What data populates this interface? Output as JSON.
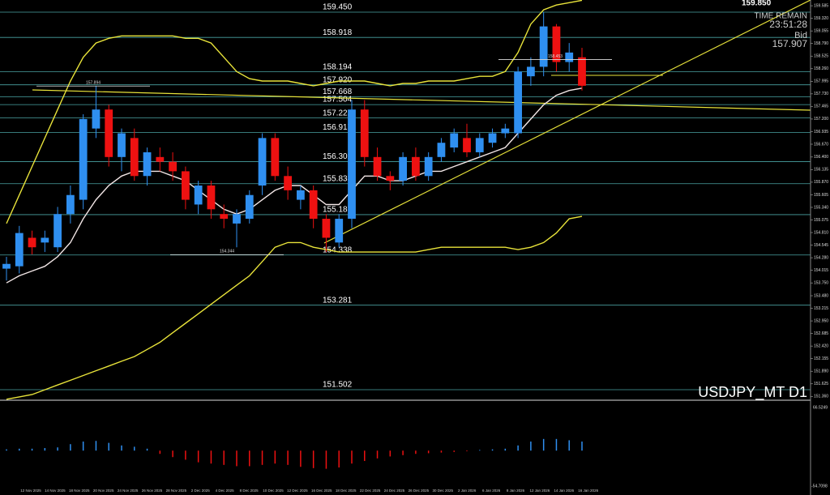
{
  "chart_data": {
    "type": "candlestick",
    "symbol": "USDJPY_MT D1",
    "time_remain_label": "TIME REMAIN",
    "time_remain": "23:51:28",
    "bid_label": "Bid",
    "bid": "157.907",
    "top_price": "159.850",
    "annotations": [
      {
        "value": 158.453,
        "label": "158.453"
      },
      {
        "value": 157.894,
        "label": "157.894"
      },
      {
        "value": 154.344,
        "label": "154.344"
      }
    ],
    "ylim": [
      151.297,
      159.706
    ],
    "yticks": [
      159.585,
      {
        "value": 159.32,
        "label": "159.320"
      },
      159.055,
      {
        "value": 158.79,
        "label": "158.790"
      },
      158.525,
      {
        "value": 158.26,
        "label": "158.260"
      },
      157.995,
      {
        "value": 157.73,
        "label": "157.730"
      },
      157.465,
      {
        "value": 157.2,
        "label": "157.200"
      },
      156.935,
      {
        "value": 156.67,
        "label": "156.670"
      },
      {
        "value": 156.4,
        "label": "156.400"
      },
      156.135,
      {
        "value": 155.87,
        "label": "155.870"
      },
      155.605,
      {
        "value": 155.34,
        "label": "155.340"
      },
      155.075,
      {
        "value": 154.81,
        "label": "154.810"
      },
      154.545,
      {
        "value": 154.28,
        "label": "154.280"
      },
      154.015,
      {
        "value": 153.75,
        "label": "153.750"
      },
      {
        "value": 153.48,
        "label": "153.480"
      },
      153.215,
      {
        "value": 152.95,
        "label": "152.950"
      },
      152.685,
      {
        "value": 152.42,
        "label": "152.420"
      },
      152.155,
      {
        "value": 151.89,
        "label": "151.890"
      },
      151.625,
      {
        "value": 151.36,
        "label": "151.360"
      }
    ],
    "levels": [
      {
        "value": 159.45,
        "label": "159.450"
      },
      158.918,
      158.194,
      {
        "value": 157.92,
        "label": "157.920"
      },
      157.668,
      157.504,
      157.222,
      156.917,
      156.302,
      155.838,
      155.187,
      154.338,
      153.281,
      151.502
    ],
    "x_labels": [
      "12 Nov 2025",
      "14 Nov 2025",
      "18 Nov 2025",
      "20 Nov 2025",
      "24 Nov 2025",
      "26 Nov 2025",
      "28 Nov 2025",
      "2 Dec 2025",
      "4 Dec 2025",
      "8 Dec 2025",
      "10 Dec 2025",
      "12 Dec 2025",
      "16 Dec 2025",
      "18 Dec 2025",
      "22 Dec 2025",
      "24 Dec 2025",
      "26 Dec 2025",
      "30 Dec 2025",
      "2 Jan 2026",
      "6 Jan 2026",
      "8 Jan 2026",
      "12 Jan 2026",
      "14 Jan 2026",
      "16 Jan 2026"
    ],
    "candles": [
      [
        154.05,
        154.3,
        153.8,
        154.15
      ],
      [
        154.1,
        154.95,
        153.95,
        154.8
      ],
      [
        154.7,
        154.85,
        154.35,
        154.5
      ],
      [
        154.6,
        154.85,
        154.4,
        154.7
      ],
      [
        154.5,
        155.35,
        154.4,
        155.2
      ],
      [
        155.2,
        155.8,
        155.0,
        155.6
      ],
      [
        155.5,
        157.3,
        155.3,
        157.2
      ],
      [
        157.0,
        157.9,
        156.8,
        157.4
      ],
      [
        157.4,
        157.5,
        156.2,
        156.4
      ],
      [
        156.4,
        157.0,
        156.1,
        156.9
      ],
      [
        156.8,
        157.0,
        155.9,
        156.0
      ],
      [
        156.0,
        156.6,
        155.8,
        156.5
      ],
      [
        156.4,
        156.6,
        156.1,
        156.3
      ],
      [
        156.3,
        156.5,
        155.9,
        156.1
      ],
      [
        156.1,
        156.2,
        155.3,
        155.5
      ],
      [
        155.4,
        155.9,
        155.2,
        155.8
      ],
      [
        155.8,
        155.9,
        155.1,
        155.3
      ],
      [
        155.2,
        155.4,
        154.9,
        155.1
      ],
      [
        155.0,
        155.3,
        154.5,
        155.2
      ],
      [
        155.1,
        155.7,
        155.0,
        155.6
      ],
      [
        155.8,
        156.9,
        155.6,
        156.8
      ],
      [
        156.8,
        156.9,
        155.9,
        156.0
      ],
      [
        156.0,
        156.2,
        155.5,
        155.7
      ],
      [
        155.5,
        155.8,
        155.3,
        155.7
      ],
      [
        155.7,
        155.8,
        154.9,
        155.1
      ],
      [
        155.1,
        155.2,
        154.4,
        154.7
      ],
      [
        154.6,
        155.2,
        154.5,
        155.1
      ],
      [
        155.1,
        157.6,
        154.9,
        157.4
      ],
      [
        157.4,
        157.6,
        156.2,
        156.4
      ],
      [
        156.4,
        156.6,
        155.9,
        156.0
      ],
      [
        156.0,
        156.1,
        155.7,
        155.9
      ],
      [
        155.9,
        156.5,
        155.8,
        156.4
      ],
      [
        156.4,
        156.6,
        155.9,
        156.0
      ],
      [
        156.0,
        156.5,
        155.9,
        156.4
      ],
      [
        156.4,
        156.8,
        156.3,
        156.7
      ],
      [
        156.6,
        157.0,
        156.5,
        156.9
      ],
      [
        156.8,
        157.1,
        156.4,
        156.5
      ],
      [
        156.5,
        156.9,
        156.4,
        156.8
      ],
      [
        156.7,
        157.0,
        156.6,
        156.9
      ],
      [
        156.9,
        157.1,
        156.8,
        157.0
      ],
      [
        156.9,
        158.3,
        156.8,
        158.2
      ],
      [
        158.1,
        158.5,
        157.9,
        158.3
      ],
      [
        158.3,
        159.45,
        158.1,
        159.15
      ],
      [
        159.15,
        159.2,
        158.2,
        158.4
      ],
      [
        158.4,
        158.8,
        158.2,
        158.6
      ],
      [
        158.5,
        158.7,
        157.8,
        157.9
      ]
    ],
    "lines": [
      {
        "color": "#f2e6e6",
        "values": [
          153.75,
          153.9,
          154.0,
          154.1,
          154.3,
          154.6,
          155.1,
          155.5,
          155.8,
          156.0,
          156.1,
          156.1,
          156.1,
          156.0,
          155.9,
          155.7,
          155.5,
          155.3,
          155.2,
          155.3,
          155.5,
          155.7,
          155.8,
          155.8,
          155.6,
          155.4,
          155.4,
          155.7,
          156.0,
          156.0,
          155.9,
          155.9,
          156.0,
          156.1,
          156.1,
          156.2,
          156.3,
          156.4,
          156.5,
          156.6,
          156.9,
          157.2,
          157.5,
          157.7,
          157.8,
          157.85
        ]
      },
      {
        "color": "#e8e33a",
        "values": [
          155.0,
          155.6,
          156.2,
          156.8,
          157.4,
          158.0,
          158.5,
          158.8,
          158.9,
          158.95,
          158.95,
          158.95,
          158.95,
          158.95,
          158.9,
          158.9,
          158.8,
          158.5,
          158.2,
          158.05,
          158.0,
          158.0,
          158.0,
          157.95,
          157.9,
          157.95,
          158.0,
          158.0,
          158.0,
          157.95,
          157.9,
          157.95,
          157.95,
          158.0,
          158.0,
          158.0,
          158.05,
          158.1,
          158.1,
          158.2,
          158.6,
          159.2,
          159.5,
          159.6,
          159.65,
          159.7
        ]
      },
      {
        "color": "#e8e33a",
        "values": [
          151.3,
          151.35,
          151.4,
          151.5,
          151.6,
          151.7,
          151.8,
          151.9,
          152.0,
          152.1,
          152.2,
          152.35,
          152.5,
          152.7,
          152.9,
          153.1,
          153.3,
          153.5,
          153.7,
          153.9,
          154.2,
          154.5,
          154.6,
          154.6,
          154.5,
          154.45,
          154.4,
          154.4,
          154.4,
          154.4,
          154.4,
          154.4,
          154.4,
          154.45,
          154.5,
          154.5,
          154.5,
          154.5,
          154.5,
          154.5,
          154.45,
          154.5,
          154.6,
          154.8,
          155.1,
          155.15
        ]
      }
    ],
    "osc_ylim": [
      -54.7098,
      66.5249
    ],
    "osc_labels": [
      "66.5249",
      "-54.7098"
    ],
    "oscillator": [
      2,
      3,
      3,
      4,
      5,
      10,
      14,
      15,
      12,
      8,
      6,
      3,
      -5,
      -10,
      -14,
      -18,
      -20,
      -22,
      -24,
      -24,
      -22,
      -20,
      -22,
      -25,
      -27,
      -28,
      -26,
      -20,
      -16,
      -12,
      -9,
      -7,
      -5,
      -4,
      -3,
      -2,
      -1,
      1,
      2,
      3,
      8,
      14,
      18,
      18,
      16,
      14
    ]
  }
}
